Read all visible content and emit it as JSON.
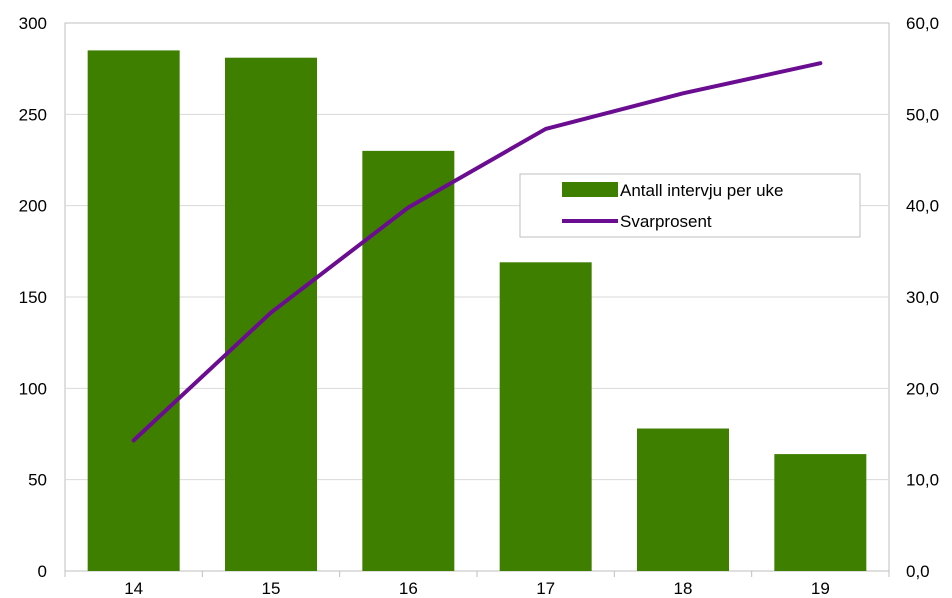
{
  "chart_data": {
    "type": "bar",
    "categories": [
      "14",
      "15",
      "16",
      "17",
      "18",
      "19"
    ],
    "series": [
      {
        "name": "Antall intervju per uke",
        "type": "bar",
        "axis": "left",
        "color": "#3f7f00",
        "values": [
          285,
          281,
          230,
          169,
          78,
          64
        ]
      },
      {
        "name": "Svarprosent",
        "type": "line",
        "axis": "right",
        "color": "#6a0d91",
        "values": [
          14.3,
          28.3,
          39.8,
          48.4,
          52.3,
          55.6
        ]
      }
    ],
    "y_left": {
      "lim": [
        0,
        300
      ],
      "ticks": [
        "0",
        "50",
        "100",
        "150",
        "200",
        "250",
        "300"
      ]
    },
    "y_right": {
      "lim": [
        0,
        60
      ],
      "ticks": [
        "0,0",
        "10,0",
        "20,0",
        "30,0",
        "40,0",
        "50,0",
        "60,0"
      ]
    },
    "grid": true,
    "legend_position": "right-middle"
  }
}
